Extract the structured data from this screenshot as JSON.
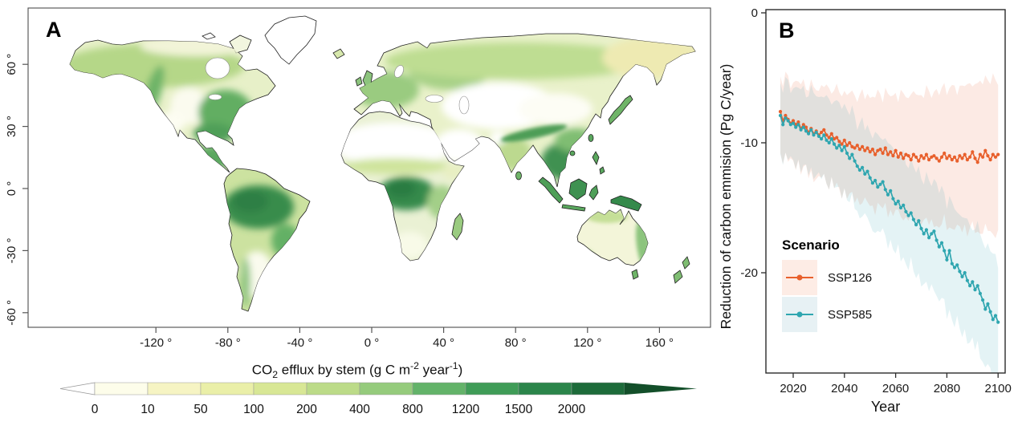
{
  "panel_a": {
    "label": "A",
    "x_ticks": [
      {
        "lon": -120,
        "label": "-120 °"
      },
      {
        "lon": -80,
        "label": "-80 °"
      },
      {
        "lon": -40,
        "label": "-40 °"
      },
      {
        "lon": 0,
        "label": "0 °"
      },
      {
        "lon": 40,
        "label": "40 °"
      },
      {
        "lon": 80,
        "label": "80 °"
      },
      {
        "lon": 120,
        "label": "120 °"
      },
      {
        "lon": 160,
        "label": "160 °"
      }
    ],
    "y_ticks": [
      {
        "lat": 60,
        "label": "60 °"
      },
      {
        "lat": 30,
        "label": "30 °"
      },
      {
        "lat": 0,
        "label": "0 °"
      },
      {
        "lat": -30,
        "label": "-30 °"
      },
      {
        "lat": -60,
        "label": "-60 °"
      }
    ],
    "colorbar": {
      "title_parts": {
        "t1": "CO",
        "sub": "2",
        "t2": " efflux by stem (g C m",
        "sup1": "-2",
        "t3": " year",
        "sup2": "-1",
        "t4": ")"
      },
      "tick_labels": [
        "0",
        "10",
        "50",
        "100",
        "200",
        "400",
        "800",
        "1200",
        "1500",
        "2000"
      ],
      "segment_colors": [
        "#fdfdea",
        "#f6f4c3",
        "#eaefa8",
        "#d8e795",
        "#bcdb88",
        "#95cb7c",
        "#63b369",
        "#3f9c57",
        "#2b854a",
        "#1d6b3a"
      ],
      "left_arrow_color": "#ffffff",
      "right_arrow_color": "#134f2a"
    }
  },
  "panel_b": {
    "label": "B",
    "ylabel": "Reduction of carbon emmision  (Pg C/year)",
    "xlabel": "Year",
    "x_ticks": [
      2020,
      2040,
      2060,
      2080,
      2100
    ],
    "y_ticks": [
      0,
      -10,
      -20
    ],
    "legend": {
      "title": "Scenario",
      "entries": [
        {
          "label": "SSP126",
          "key_fill": "#fdece5"
        },
        {
          "label": "SSP585",
          "key_fill": "#e7f1f4"
        }
      ]
    }
  },
  "chart_data": [
    {
      "type": "heatmap",
      "panel": "A",
      "title": "CO2 efflux by stem (g C m-2 year-1)",
      "projection": "equirectangular world map, lon -180..180, lat -62..84",
      "x_tick_values": [
        -120,
        -80,
        -40,
        0,
        40,
        80,
        120,
        160
      ],
      "y_tick_values": [
        60,
        30,
        0,
        -30,
        -60
      ],
      "legend_bin_edges": [
        0,
        10,
        50,
        100,
        200,
        400,
        800,
        1200,
        1500,
        2000
      ],
      "legend_colors": [
        "#fdfdea",
        "#f6f4c3",
        "#eaefa8",
        "#d8e795",
        "#bcdb88",
        "#95cb7c",
        "#63b369",
        "#3f9c57",
        "#2b854a",
        "#1d6b3a"
      ],
      "high_value_regions": [
        "Amazon basin",
        "Congo basin",
        "Southeast Asia and Indonesia",
        "New Guinea",
        "Southeastern United States",
        "Central America"
      ],
      "low_value_regions": [
        "Sahara",
        "Arabian Peninsula",
        "Central Asia deserts",
        "Greenland",
        "Central Australia",
        "Patagonia",
        "Tibetan Plateau interior"
      ]
    },
    {
      "type": "line",
      "panel": "B",
      "xlabel": "Year",
      "ylabel": "Reduction of carbon emmision (Pg C/year)",
      "x_start": 2015,
      "x_end": 2100,
      "x_step": 1,
      "ylim": [
        -28,
        0
      ],
      "xlim": [
        2009,
        2103
      ],
      "series": [
        {
          "name": "SSP126",
          "color": "#E8602C",
          "band_opacity": 0.13,
          "band_halfwidth_start": 2.2,
          "band_halfwidth_end": 5.2,
          "values": [
            -7.6,
            -8.3,
            -7.9,
            -8.2,
            -8.5,
            -8.3,
            -8.6,
            -8.4,
            -8.9,
            -8.6,
            -8.8,
            -9.2,
            -8.9,
            -9.3,
            -9.1,
            -9.4,
            -9.2,
            -9.0,
            -9.4,
            -9.6,
            -9.3,
            -9.7,
            -9.6,
            -9.9,
            -10.1,
            -9.8,
            -10.2,
            -10.0,
            -10.3,
            -10.4,
            -10.2,
            -10.5,
            -10.3,
            -10.6,
            -10.4,
            -10.7,
            -10.5,
            -10.9,
            -10.6,
            -10.5,
            -10.8,
            -10.4,
            -10.9,
            -10.7,
            -11.0,
            -10.6,
            -11.1,
            -10.8,
            -11.2,
            -10.9,
            -11.0,
            -11.3,
            -10.9,
            -11.1,
            -11.4,
            -11.0,
            -11.2,
            -10.9,
            -11.3,
            -11.1,
            -11.0,
            -11.2,
            -11.4,
            -11.1,
            -10.8,
            -11.2,
            -11.0,
            -11.3,
            -11.1,
            -11.4,
            -11.0,
            -11.2,
            -10.9,
            -11.3,
            -11.1,
            -10.7,
            -11.2,
            -11.5,
            -10.9,
            -11.1,
            -10.6,
            -11.0,
            -11.3,
            -10.9,
            -11.1,
            -10.9
          ]
        },
        {
          "name": "SSP585",
          "color": "#2FA6B0",
          "band_opacity": 0.13,
          "band_halfwidth_start": 2.0,
          "band_halfwidth_end": 4.0,
          "values": [
            -7.9,
            -8.6,
            -8.1,
            -8.3,
            -8.6,
            -8.5,
            -8.8,
            -8.6,
            -9.0,
            -8.8,
            -9.1,
            -9.3,
            -9.0,
            -9.4,
            -9.2,
            -9.5,
            -9.7,
            -9.4,
            -9.8,
            -10.0,
            -9.7,
            -10.1,
            -10.4,
            -10.2,
            -10.6,
            -10.3,
            -10.8,
            -11.2,
            -10.9,
            -11.4,
            -11.8,
            -12.1,
            -11.9,
            -12.4,
            -12.2,
            -12.7,
            -13.1,
            -12.9,
            -13.4,
            -13.2,
            -13.0,
            -13.6,
            -14.0,
            -13.7,
            -14.3,
            -14.7,
            -14.5,
            -15.0,
            -14.8,
            -15.3,
            -15.6,
            -15.4,
            -15.9,
            -16.3,
            -16.0,
            -16.6,
            -17.0,
            -16.7,
            -17.3,
            -17.0,
            -16.8,
            -17.5,
            -18.0,
            -17.7,
            -18.3,
            -19.0,
            -18.3,
            -19.3,
            -19.6,
            -19.4,
            -19.9,
            -20.3,
            -20.0,
            -20.6,
            -21.0,
            -20.7,
            -21.3,
            -21.0,
            -21.6,
            -22.1,
            -22.8,
            -22.4,
            -23.0,
            -23.6,
            -23.3,
            -23.8
          ]
        }
      ]
    }
  ]
}
